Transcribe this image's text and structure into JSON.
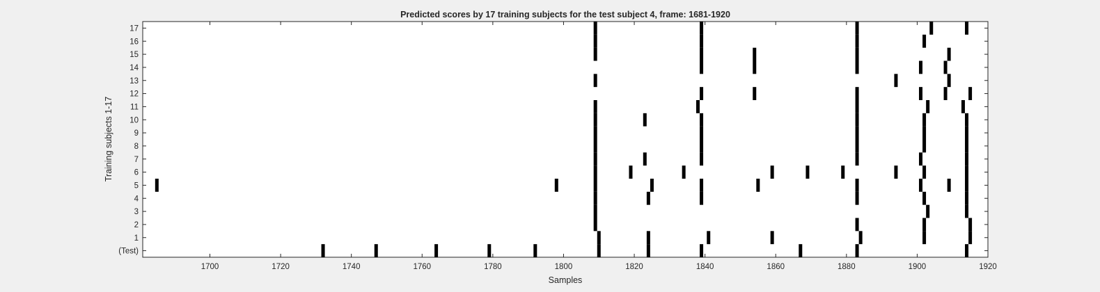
{
  "chart_data": {
    "type": "scatter",
    "title": "Predicted scores by 17 training subjects for the test subject 4, frame: 1681-1920",
    "xlabel": "Samples",
    "ylabel": "Training subjects 1-17",
    "xlim": [
      1681,
      1920
    ],
    "xticks": [
      1700,
      1720,
      1740,
      1760,
      1780,
      1800,
      1820,
      1840,
      1860,
      1880,
      1900,
      1920
    ],
    "ylim": [
      -0.5,
      17.5
    ],
    "yticks": [
      0,
      1,
      2,
      3,
      4,
      5,
      6,
      7,
      8,
      9,
      10,
      11,
      12,
      13,
      14,
      15,
      16,
      17
    ],
    "yticklabels": [
      "(Test)",
      "1",
      "2",
      "3",
      "4",
      "5",
      "6",
      "7",
      "8",
      "9",
      "10",
      "11",
      "12",
      "13",
      "14",
      "15",
      "16",
      "17"
    ],
    "grid": false,
    "marker_color": "#000000",
    "background_color": "#ffffff",
    "rows": [
      {
        "row": 0,
        "x": [
          1732,
          1747,
          1764,
          1779,
          1792,
          1810,
          1824,
          1839,
          1867,
          1883,
          1914
        ]
      },
      {
        "row": 1,
        "x": [
          1810,
          1824,
          1841,
          1859,
          1884,
          1902,
          1915
        ]
      },
      {
        "row": 2,
        "x": [
          1809,
          1883,
          1902,
          1915
        ]
      },
      {
        "row": 3,
        "x": [
          1809,
          1903,
          1914
        ]
      },
      {
        "row": 4,
        "x": [
          1809,
          1824,
          1839,
          1883,
          1902,
          1914
        ]
      },
      {
        "row": 5,
        "x": [
          1685,
          1798,
          1809,
          1825,
          1839,
          1855,
          1883,
          1901,
          1909,
          1914
        ]
      },
      {
        "row": 6,
        "x": [
          1809,
          1819,
          1834,
          1859,
          1869,
          1879,
          1894,
          1902,
          1914
        ]
      },
      {
        "row": 7,
        "x": [
          1809,
          1823,
          1839,
          1883,
          1901,
          1914
        ]
      },
      {
        "row": 8,
        "x": [
          1809,
          1839,
          1883,
          1902,
          1914
        ]
      },
      {
        "row": 9,
        "x": [
          1809,
          1839,
          1883,
          1902,
          1914
        ]
      },
      {
        "row": 10,
        "x": [
          1809,
          1823,
          1839,
          1883,
          1902,
          1914
        ]
      },
      {
        "row": 11,
        "x": [
          1809,
          1838,
          1883,
          1903,
          1913
        ]
      },
      {
        "row": 12,
        "x": [
          1839,
          1854,
          1883,
          1901,
          1908,
          1915
        ]
      },
      {
        "row": 13,
        "x": [
          1809,
          1894,
          1909
        ]
      },
      {
        "row": 14,
        "x": [
          1839,
          1854,
          1883,
          1901,
          1908
        ]
      },
      {
        "row": 15,
        "x": [
          1809,
          1839,
          1854,
          1883,
          1909
        ]
      },
      {
        "row": 16,
        "x": [
          1809,
          1839,
          1883,
          1902
        ]
      },
      {
        "row": 17,
        "x": [
          1809,
          1839,
          1883,
          1904,
          1914
        ]
      }
    ]
  }
}
